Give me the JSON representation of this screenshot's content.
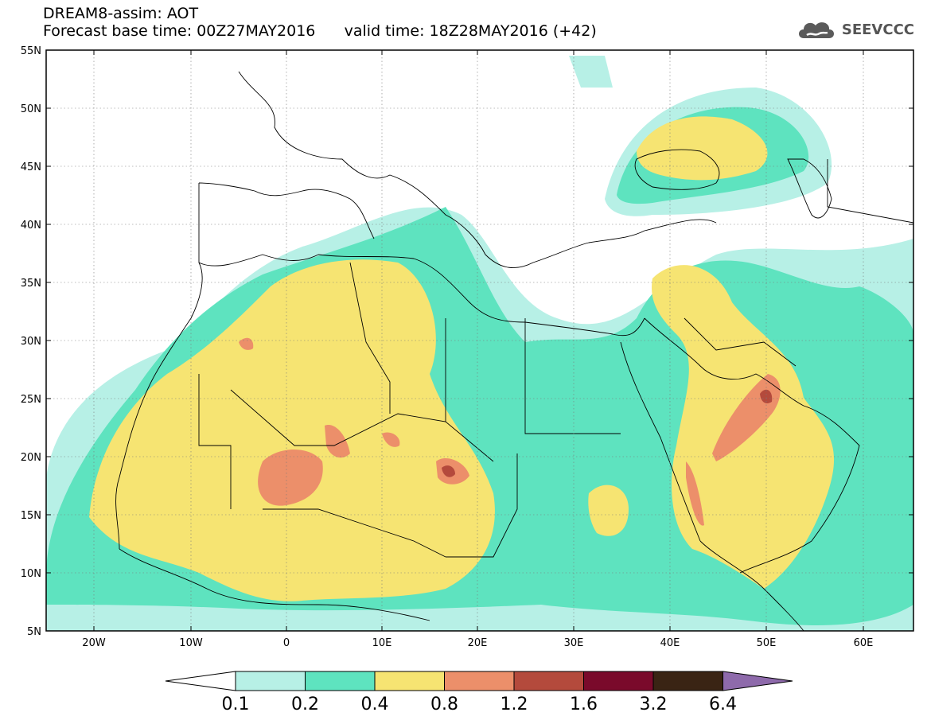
{
  "header": {
    "line1": "DREAM8-assim: AOT",
    "base_time": "Forecast base time: 00Z27MAY2016",
    "valid_time": "valid time: 18Z28MAY2016 (+42)"
  },
  "logo": {
    "text": "SEEVCCC",
    "icon": "cloud-icon"
  },
  "map": {
    "lon_range": [
      -25,
      65
    ],
    "lat_range": [
      5,
      55
    ],
    "lat_labels": [
      "55N",
      "50N",
      "45N",
      "40N",
      "35N",
      "30N",
      "25N",
      "20N",
      "15N",
      "10N",
      "5N"
    ],
    "lon_labels": [
      "20W",
      "10W",
      "0",
      "10E",
      "20E",
      "30E",
      "40E",
      "50E",
      "60E"
    ]
  },
  "colorbar": {
    "labels": [
      "0.1",
      "0.2",
      "0.4",
      "0.8",
      "1.2",
      "1.6",
      "3.2",
      "6.4"
    ],
    "colors": [
      "#ffffff",
      "#b7f0e6",
      "#5ee3bf",
      "#f6e472",
      "#ec8f6a",
      "#b44a3c",
      "#7a0a2b",
      "#3a2414",
      "#8e6aab"
    ]
  }
}
